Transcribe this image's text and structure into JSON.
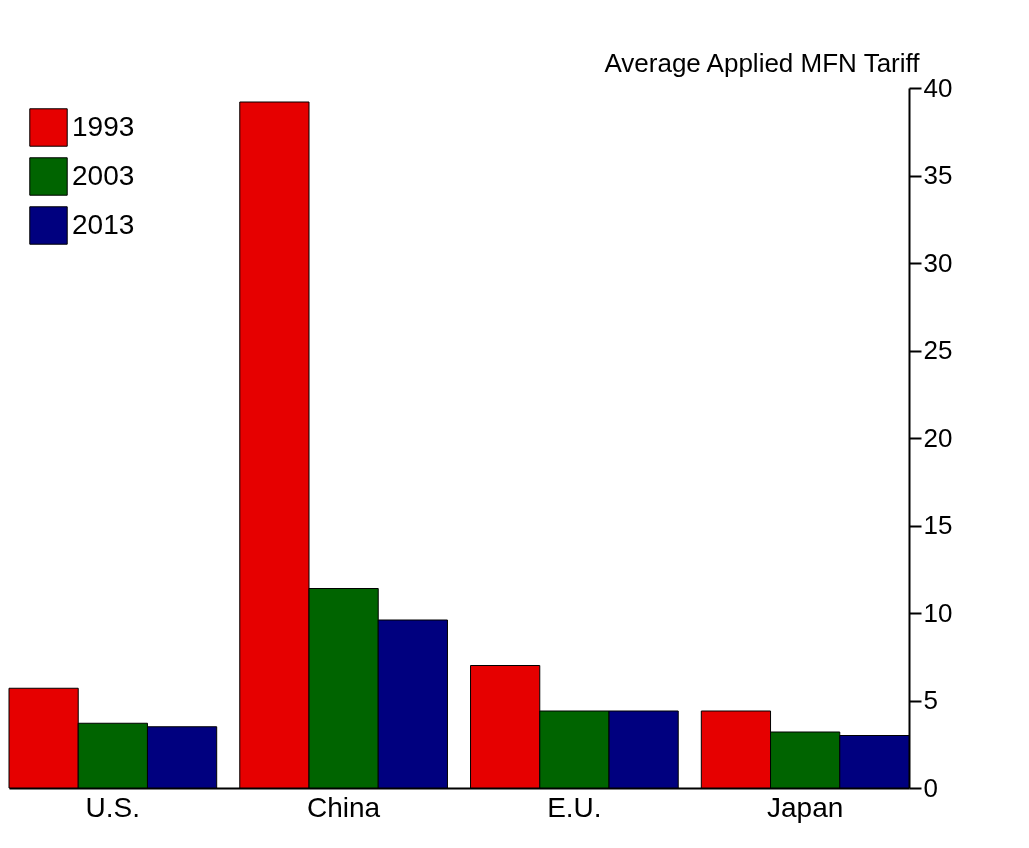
{
  "chart_data": {
    "type": "bar",
    "ylabel": "Average Applied MFN Tariff",
    "categories": [
      "U.S.",
      "China",
      "E.U.",
      "Japan"
    ],
    "series": [
      {
        "name": "1993",
        "color": "#e60000",
        "values": [
          5.7,
          39.2,
          7.0,
          4.4
        ]
      },
      {
        "name": "2003",
        "color": "#006400",
        "values": [
          3.7,
          11.4,
          4.4,
          3.2
        ]
      },
      {
        "name": "2013",
        "color": "#00007f",
        "values": [
          3.5,
          9.6,
          4.4,
          3.0
        ]
      }
    ],
    "ylim": [
      0,
      40
    ],
    "yticks": [
      0,
      5,
      10,
      15,
      20,
      25,
      30,
      35,
      40
    ],
    "grid": false,
    "legend": "top left"
  }
}
